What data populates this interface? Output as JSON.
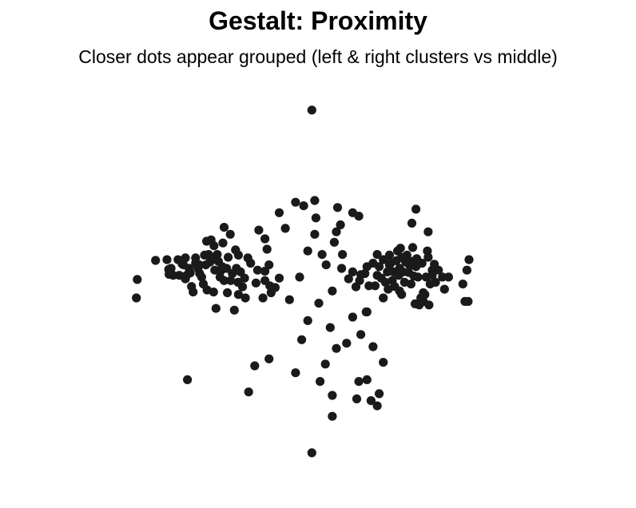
{
  "chart_data": {
    "type": "scatter",
    "title": "Gestalt: Proximity",
    "subtitle": "Closer dots appear grouped (left & right clusters vs middle)",
    "xlabel": "",
    "ylabel": "",
    "grid": false,
    "axes_visible": false,
    "point_color": "#1a1a1a",
    "xlim": [
      -5.6,
      5.6
    ],
    "ylim": [
      -5.3,
      5.9
    ],
    "series": [
      {
        "points": [
          [
            -4.43,
            -0.02
          ],
          [
            -4.45,
            -0.55
          ],
          [
            -3.98,
            0.53
          ],
          [
            -3.7,
            0.55
          ],
          [
            -3.66,
            0.27
          ],
          [
            -3.65,
            0.13
          ],
          [
            -3.6,
            0.3
          ],
          [
            -3.55,
            0.1
          ],
          [
            -3.43,
            0.55
          ],
          [
            -3.4,
            0.1
          ],
          [
            -3.33,
            0.43
          ],
          [
            -3.3,
            0.4
          ],
          [
            -3.25,
            0.0
          ],
          [
            -3.22,
            0.1
          ],
          [
            -3.25,
            0.6
          ],
          [
            -3.16,
            0.3
          ],
          [
            -3.13,
            0.17
          ],
          [
            -3.1,
            -0.22
          ],
          [
            -3.06,
            -0.38
          ],
          [
            -3.0,
            0.45
          ],
          [
            -3.0,
            0.6
          ],
          [
            -2.94,
            0.3
          ],
          [
            -2.91,
            0.4
          ],
          [
            -2.9,
            0.15
          ],
          [
            -2.85,
            0.05
          ],
          [
            -2.81,
            -0.15
          ],
          [
            -2.78,
            0.68
          ],
          [
            -2.75,
            0.4
          ],
          [
            -2.73,
            1.08
          ],
          [
            -2.72,
            -0.32
          ],
          [
            -2.68,
            0.7
          ],
          [
            -2.65,
            0.48
          ],
          [
            -2.62,
            1.12
          ],
          [
            -2.56,
            -0.38
          ],
          [
            -2.55,
            0.95
          ],
          [
            -2.53,
            0.25
          ],
          [
            -2.5,
            0.6
          ],
          [
            -2.47,
            0.7
          ],
          [
            -2.44,
            0.5
          ],
          [
            -2.4,
            0.05
          ],
          [
            -2.38,
            0.23
          ],
          [
            -2.35,
            0.35
          ],
          [
            -2.33,
            1.03
          ],
          [
            -2.3,
            -0.05
          ],
          [
            -2.24,
            0.3
          ],
          [
            -2.22,
            -0.4
          ],
          [
            -2.2,
            0.62
          ],
          [
            -2.14,
            -0.05
          ],
          [
            -2.1,
            0.15
          ],
          [
            -2.02,
            0.83
          ],
          [
            -2.0,
            0.3
          ],
          [
            -1.96,
            -0.1
          ],
          [
            -1.9,
            0.2
          ],
          [
            -1.8,
            0.02
          ],
          [
            -1.72,
            0.6
          ],
          [
            -1.52,
            -0.12
          ],
          [
            -1.48,
            0.25
          ],
          [
            -1.3,
            -0.05
          ],
          [
            -1.3,
            1.15
          ],
          [
            -1.3,
            0.22
          ],
          [
            -1.2,
            0.4
          ],
          [
            -1.18,
            -0.2
          ],
          [
            -1.35,
            -0.55
          ],
          [
            -1.25,
            0.85
          ],
          [
            -1.15,
            -0.4
          ],
          [
            -1.65,
            0.45
          ],
          [
            -1.78,
            -0.55
          ],
          [
            -1.85,
            -0.23
          ],
          [
            -1.95,
            0.68
          ],
          [
            -2.5,
            -0.85
          ],
          [
            -2.05,
            -0.9
          ],
          [
            -1.95,
            -0.45
          ],
          [
            -2.15,
            1.28
          ],
          [
            -2.3,
            1.48
          ],
          [
            -1.45,
            1.4
          ]
        ]
      },
      {
        "points": [
          [
            0.93,
            -0.23
          ],
          [
            1.02,
            -0.05
          ],
          [
            1.15,
            0.15
          ],
          [
            1.25,
            -0.2
          ],
          [
            1.4,
            -0.2
          ],
          [
            1.45,
            0.1
          ],
          [
            1.5,
            0.35
          ],
          [
            1.55,
            0.02
          ],
          [
            1.6,
            0.55
          ],
          [
            1.65,
            -0.1
          ],
          [
            1.7,
            0.2
          ],
          [
            1.72,
            -0.3
          ],
          [
            1.75,
            0.4
          ],
          [
            1.75,
            0.68
          ],
          [
            1.78,
            0.45
          ],
          [
            1.82,
            -0.05
          ],
          [
            1.85,
            0.2
          ],
          [
            1.88,
            -0.22
          ],
          [
            1.92,
            0.52
          ],
          [
            1.95,
            0.8
          ],
          [
            1.98,
            0.1
          ],
          [
            2.0,
            0.3
          ],
          [
            2.02,
            0.88
          ],
          [
            2.05,
            -0.45
          ],
          [
            2.05,
            0.62
          ],
          [
            2.08,
            0.2
          ],
          [
            2.1,
            0.58
          ],
          [
            2.12,
            -0.1
          ],
          [
            2.15,
            0.48
          ],
          [
            2.18,
            0.68
          ],
          [
            2.22,
            0.18
          ],
          [
            2.25,
            0.38
          ],
          [
            2.28,
            -0.15
          ],
          [
            2.3,
            0.5
          ],
          [
            2.32,
            0.9
          ],
          [
            2.35,
            0.08
          ],
          [
            2.38,
            -0.72
          ],
          [
            2.4,
            0.35
          ],
          [
            2.42,
            0.58
          ],
          [
            2.45,
            0.05
          ],
          [
            2.48,
            -0.75
          ],
          [
            2.52,
            -0.55
          ],
          [
            2.55,
            0.45
          ],
          [
            2.58,
            -0.65
          ],
          [
            2.62,
            -0.45
          ],
          [
            2.65,
            0.05
          ],
          [
            2.68,
            0.8
          ],
          [
            2.7,
            0.62
          ],
          [
            2.72,
            -0.75
          ],
          [
            2.75,
            -0.15
          ],
          [
            2.8,
            0.25
          ],
          [
            2.85,
            0.42
          ],
          [
            2.88,
            -0.1
          ],
          [
            2.95,
            0.25
          ],
          [
            3.05,
            0.05
          ],
          [
            3.1,
            -0.3
          ],
          [
            3.2,
            0.05
          ],
          [
            3.55,
            -0.15
          ],
          [
            3.6,
            -0.65
          ],
          [
            3.65,
            0.25
          ],
          [
            3.68,
            -0.65
          ],
          [
            3.7,
            0.55
          ],
          [
            2.4,
            2.0
          ],
          [
            2.3,
            1.6
          ],
          [
            2.7,
            1.35
          ],
          [
            1.0,
            1.8
          ],
          [
            1.2,
            -0.95
          ],
          [
            1.45,
            0.7
          ],
          [
            1.6,
            -0.55
          ],
          [
            1.35,
            0.45
          ],
          [
            2.0,
            -0.35
          ],
          [
            2.58,
            -0.4
          ],
          [
            2.8,
            0.1
          ]
        ]
      },
      {
        "points": [
          [
            -0.15,
            4.85
          ],
          [
            -0.55,
            2.2
          ],
          [
            -0.35,
            2.1
          ],
          [
            -0.08,
            2.25
          ],
          [
            -0.08,
            1.28
          ],
          [
            0.6,
            0.7
          ],
          [
            0.75,
            0.0
          ],
          [
            0.48,
            2.05
          ],
          [
            0.58,
            0.3
          ],
          [
            0.2,
            0.4
          ],
          [
            0.45,
            1.35
          ],
          [
            0.45,
            -2.0
          ],
          [
            1.05,
            0.12
          ],
          [
            0.85,
            0.2
          ],
          [
            1.2,
            0.35
          ],
          [
            -1.2,
            -2.3
          ],
          [
            -1.55,
            -2.5
          ],
          [
            -3.2,
            -2.9
          ],
          [
            -1.7,
            -3.25
          ],
          [
            0.35,
            -3.95
          ],
          [
            0.35,
            -3.35
          ],
          [
            1.0,
            -2.95
          ],
          [
            0.95,
            -3.45
          ],
          [
            1.2,
            -2.9
          ],
          [
            1.3,
            -3.5
          ],
          [
            1.45,
            -3.65
          ],
          [
            1.5,
            -3.3
          ],
          [
            -0.15,
            -5.0
          ],
          [
            1.6,
            -2.4
          ],
          [
            0.85,
            -1.1
          ],
          [
            1.05,
            -1.6
          ],
          [
            1.35,
            -1.95
          ],
          [
            -0.95,
            0.02
          ],
          [
            -1.05,
            -0.25
          ],
          [
            0.1,
            0.7
          ],
          [
            1.18,
            -0.95
          ],
          [
            -0.25,
            0.8
          ],
          [
            0.55,
            1.55
          ],
          [
            0.02,
            -0.7
          ],
          [
            -0.8,
            1.45
          ],
          [
            0.3,
            -1.4
          ],
          [
            -0.4,
            -1.75
          ],
          [
            0.7,
            -1.85
          ],
          [
            -0.7,
            -0.6
          ],
          [
            0.18,
            -2.45
          ],
          [
            -0.05,
            1.75
          ],
          [
            -0.45,
            0.05
          ],
          [
            0.85,
            1.9
          ],
          [
            -0.25,
            -1.2
          ],
          [
            0.35,
            -0.35
          ],
          [
            -0.95,
            1.9
          ],
          [
            0.05,
            -2.95
          ],
          [
            -0.55,
            -2.7
          ],
          [
            0.4,
            1.05
          ]
        ]
      }
    ]
  }
}
